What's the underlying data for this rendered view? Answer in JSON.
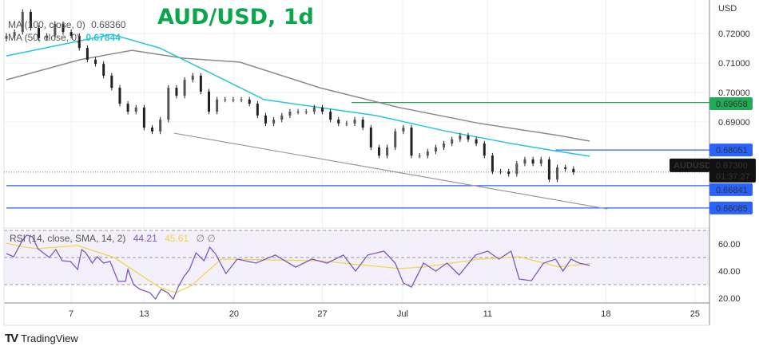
{
  "title": "AUD/USD, 1d",
  "legend": {
    "ma100_label": "MA (100, close, 0)",
    "ma100_value": "0.68360",
    "ma50_label": "MA (50, close, 0)",
    "ma50_value": "0.67844",
    "rsi_label": "RSI (14, close, SMA, 14, 2)",
    "rsi_value": "44.21",
    "rsi_sma_value": "45.61",
    "rsi_extra": "∅ ∅"
  },
  "logo_text": "TradingView",
  "colors": {
    "ma50": "#26c6da",
    "ma100": "#8a8a8a",
    "rsi": "#7e57c2",
    "rsi_sma": "#f2d64b",
    "green_level": "#22ab54",
    "blue_level": "#2962ff",
    "candle": "#222222"
  },
  "chart_data": {
    "type": "candlestick",
    "symbol": "AUDUSD",
    "currency_label": "USD",
    "price_axis_ticks": [
      "0.72000",
      "0.71000",
      "0.70000",
      "0.69000"
    ],
    "price_axis_values": [
      0.72,
      0.71,
      0.7,
      0.69
    ],
    "time_axis": [
      {
        "label": "7",
        "bar": 8
      },
      {
        "label": "13",
        "bar": 17
      },
      {
        "label": "20",
        "bar": 28.1
      },
      {
        "label": "27",
        "bar": 39
      },
      {
        "label": "Jul",
        "bar": 48.9
      },
      {
        "label": "11",
        "bar": 59.4
      },
      {
        "label": "18",
        "bar": 74
      },
      {
        "label": "25",
        "bar": 85
      }
    ],
    "closes": [
      0.7192,
      0.7205,
      0.7273,
      0.7219,
      0.7184,
      0.7192,
      0.7232,
      0.7205,
      0.7192,
      0.7151,
      0.7111,
      0.7097,
      0.7057,
      0.7016,
      0.6962,
      0.6935,
      0.6949,
      0.6881,
      0.6868,
      0.6908,
      0.7016,
      0.6989,
      0.7043,
      0.7057,
      0.7003,
      0.6935,
      0.6976,
      0.6976,
      0.6976,
      0.6976,
      0.6962,
      0.6922,
      0.6895,
      0.6908,
      0.6922,
      0.6935,
      0.6935,
      0.6935,
      0.6949,
      0.6935,
      0.6908,
      0.6895,
      0.6895,
      0.6908,
      0.6881,
      0.6814,
      0.6786,
      0.6814,
      0.6868,
      0.6881,
      0.6786,
      0.6786,
      0.68,
      0.6814,
      0.6827,
      0.6841,
      0.6854,
      0.6841,
      0.6827,
      0.6786,
      0.6732,
      0.6732,
      0.6724,
      0.6759,
      0.6773,
      0.6759,
      0.6773,
      0.6705,
      0.6746,
      0.6741,
      0.673
    ],
    "current_price": {
      "label": "AUDUSD",
      "value": "0.67300",
      "countdown": "01:37:27",
      "price": 0.673
    },
    "horizontal_levels": [
      {
        "value": 0.69658,
        "label": "0.69658",
        "color": "#22ab54",
        "from_bar": 42.6
      },
      {
        "value": 0.68051,
        "label": "0.68051",
        "color": "#2962ff",
        "from_bar": 67.8
      },
      {
        "value": 0.66841,
        "label": "0.66841",
        "color": "#2962ff",
        "from_bar": 0
      },
      {
        "value": 0.66085,
        "label": "0.66085",
        "color": "#2962ff",
        "from_bar": 0
      }
    ],
    "trendline": [
      [
        20.7,
        0.6862
      ],
      [
        74.2,
        0.6605
      ]
    ],
    "ma50": [
      [
        0,
        0.7124
      ],
      [
        13,
        0.7197
      ],
      [
        18.9,
        0.7151
      ],
      [
        24.9,
        0.707
      ],
      [
        31.8,
        0.6976
      ],
      [
        38.7,
        0.6949
      ],
      [
        45.6,
        0.6922
      ],
      [
        54.4,
        0.6868
      ],
      [
        62.3,
        0.6827
      ],
      [
        68.2,
        0.68
      ],
      [
        72,
        0.6784
      ]
    ],
    "ma100": [
      [
        0,
        0.7043
      ],
      [
        9.1,
        0.7111
      ],
      [
        15.5,
        0.7143
      ],
      [
        21.9,
        0.7116
      ],
      [
        28.8,
        0.7103
      ],
      [
        38.7,
        0.7016
      ],
      [
        48.5,
        0.6949
      ],
      [
        58.4,
        0.6895
      ],
      [
        68.2,
        0.6854
      ],
      [
        72,
        0.6835
      ]
    ],
    "rsi": {
      "axis_ticks": [
        "60.00",
        "40.00",
        "20.00"
      ],
      "axis_values": [
        60,
        40,
        20
      ],
      "bands": [
        70,
        50,
        30
      ],
      "rsi": [
        [
          0,
          52.9
        ],
        [
          0.9,
          50.6
        ],
        [
          1.9,
          61.8
        ],
        [
          2.5,
          66.5
        ],
        [
          3.2,
          65.3
        ],
        [
          3.9,
          56.5
        ],
        [
          5.3,
          50
        ],
        [
          6.1,
          55.9
        ],
        [
          6.9,
          47.6
        ],
        [
          7.9,
          47.1
        ],
        [
          8.8,
          41.2
        ],
        [
          9.3,
          55.9
        ],
        [
          9.8,
          53.5
        ],
        [
          10.6,
          45.9
        ],
        [
          11.2,
          50.6
        ],
        [
          12,
          45.9
        ],
        [
          12.8,
          47.1
        ],
        [
          13.8,
          32.4
        ],
        [
          14.7,
          32.4
        ],
        [
          15,
          41.2
        ],
        [
          15.7,
          30
        ],
        [
          16.5,
          26.5
        ],
        [
          17.7,
          24.1
        ],
        [
          18.4,
          19.4
        ],
        [
          19.1,
          26.5
        ],
        [
          19.9,
          24.1
        ],
        [
          20.6,
          19.4
        ],
        [
          21.2,
          28.2
        ],
        [
          21.9,
          35.9
        ],
        [
          22.6,
          41.2
        ],
        [
          23.4,
          53.5
        ],
        [
          24.4,
          47.6
        ],
        [
          25.1,
          57.6
        ],
        [
          25.8,
          52.9
        ],
        [
          27.1,
          38.2
        ],
        [
          28.5,
          48.8
        ],
        [
          30.8,
          45.9
        ],
        [
          33.2,
          51.8
        ],
        [
          35.7,
          42.9
        ],
        [
          37.7,
          48.8
        ],
        [
          39.6,
          45.9
        ],
        [
          41.6,
          51.8
        ],
        [
          43.1,
          40
        ],
        [
          44.6,
          51.8
        ],
        [
          46.6,
          54.7
        ],
        [
          48,
          45.9
        ],
        [
          49,
          31.2
        ],
        [
          50,
          28.2
        ],
        [
          51.5,
          45.9
        ],
        [
          53,
          40
        ],
        [
          54.4,
          45.9
        ],
        [
          55.9,
          37.1
        ],
        [
          57.9,
          51.8
        ],
        [
          59.4,
          54.7
        ],
        [
          60.8,
          48.8
        ],
        [
          62.3,
          54.7
        ],
        [
          63.3,
          34.1
        ],
        [
          64.8,
          32.9
        ],
        [
          66.3,
          45.9
        ],
        [
          67.8,
          48.8
        ],
        [
          68.7,
          40
        ],
        [
          69.7,
          48.8
        ],
        [
          70.7,
          45.9
        ],
        [
          72,
          44.2
        ]
      ],
      "sma": [
        [
          0,
          60.6
        ],
        [
          1.9,
          58
        ],
        [
          3.8,
          56.5
        ],
        [
          8.8,
          58.8
        ],
        [
          13.3,
          50
        ],
        [
          18.9,
          28
        ],
        [
          20.9,
          24
        ],
        [
          22.9,
          29.4
        ],
        [
          26.5,
          48.8
        ],
        [
          38.7,
          47.6
        ],
        [
          48.5,
          41.8
        ],
        [
          51.5,
          43
        ],
        [
          58.4,
          48.8
        ],
        [
          63.3,
          50.6
        ],
        [
          68.2,
          43
        ],
        [
          72,
          45.6
        ]
      ]
    }
  }
}
